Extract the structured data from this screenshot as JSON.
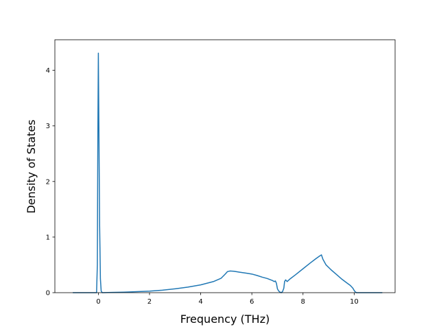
{
  "chart_data": {
    "type": "line",
    "title": "",
    "xlabel": "Frequency (THz)",
    "ylabel": "Density of States",
    "xlim": [
      -1.7,
      11.6
    ],
    "ylim": [
      0,
      4.55
    ],
    "xticks": [
      0,
      2,
      4,
      6,
      8,
      10
    ],
    "yticks": [
      0,
      1,
      2,
      3,
      4
    ],
    "grid": false,
    "series": [
      {
        "color": "#1f77b4",
        "x": [
          -1.0,
          -0.1,
          -0.07,
          -0.04,
          -0.02,
          0.0,
          0.02,
          0.05,
          0.08,
          0.11,
          0.15,
          0.5,
          1.0,
          1.5,
          2.0,
          2.5,
          3.0,
          3.5,
          4.0,
          4.5,
          4.8,
          4.95,
          5.05,
          5.15,
          5.3,
          5.5,
          5.8,
          6.0,
          6.2,
          6.4,
          6.6,
          6.8,
          6.88,
          6.92,
          6.96,
          7.0,
          7.05,
          7.1,
          7.15,
          7.2,
          7.25,
          7.28,
          7.32,
          7.38,
          7.5,
          7.7,
          8.0,
          8.3,
          8.5,
          8.65,
          8.72,
          8.78,
          8.9,
          9.1,
          9.3,
          9.5,
          9.7,
          9.85,
          9.95,
          10.0,
          10.05,
          10.1,
          10.5,
          11.1
        ],
        "y": [
          0.0,
          0.0,
          0.0,
          0.5,
          2.8,
          4.31,
          3.0,
          1.2,
          0.25,
          0.03,
          0.0,
          0.004,
          0.01,
          0.018,
          0.028,
          0.045,
          0.07,
          0.1,
          0.14,
          0.2,
          0.26,
          0.33,
          0.38,
          0.39,
          0.385,
          0.37,
          0.35,
          0.335,
          0.31,
          0.28,
          0.255,
          0.22,
          0.2,
          0.21,
          0.17,
          0.07,
          0.03,
          0.01,
          0.0,
          0.02,
          0.08,
          0.2,
          0.23,
          0.2,
          0.25,
          0.32,
          0.43,
          0.54,
          0.61,
          0.66,
          0.68,
          0.6,
          0.5,
          0.41,
          0.33,
          0.25,
          0.18,
          0.13,
          0.08,
          0.04,
          0.01,
          0.0,
          0.0,
          0.0
        ]
      }
    ]
  }
}
